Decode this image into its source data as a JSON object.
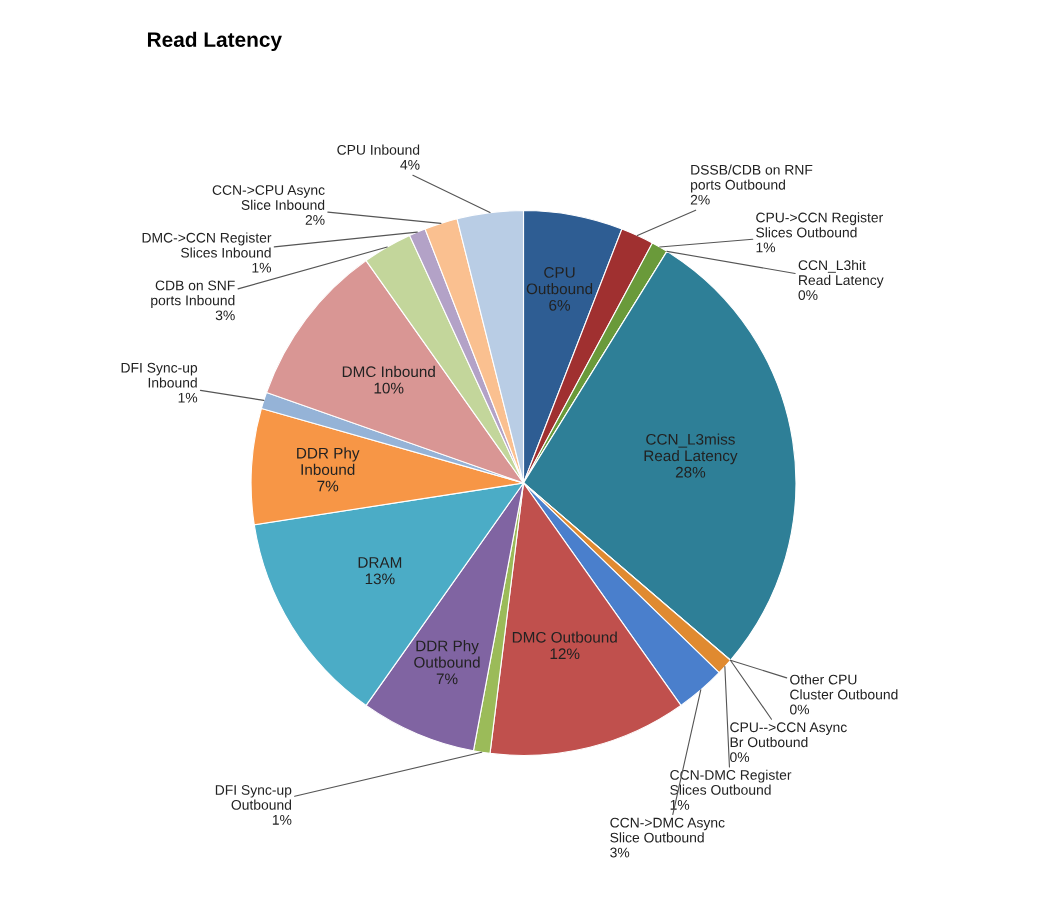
{
  "chart_data": {
    "type": "pie",
    "title": "Read Latency",
    "categories": [
      "CPU Outbound",
      "DSSB/CDB on RNF ports Outbound",
      "CPU->CCN Register Slices Outbound",
      "CCN_L3hit Read Latency",
      "CCN_L3miss Read Latency",
      "Other CPU Cluster Outbound",
      "CPU-->CCN Async Br Outbound",
      "CCN-DMC Register Slices Outbound",
      "CCN->DMC Async Slice Outbound",
      "DMC Outbound",
      "DFI Sync-up Outbound",
      "DDR Phy Outbound",
      "DRAM",
      "DDR Phy Inbound",
      "DFI Sync-up Inbound",
      "DMC Inbound",
      "CDB on SNF ports Inbound",
      "DMC->CCN Register Slices Inbound",
      "CCN->CPU Async Slice Inbound",
      "CPU Inbound"
    ],
    "values": [
      6,
      2,
      1,
      0,
      28,
      0,
      0,
      1,
      3,
      12,
      1,
      7,
      13,
      7,
      1,
      10,
      3,
      1,
      2,
      4
    ],
    "value_labels": [
      "6%",
      "2%",
      "1%",
      "0%",
      "28%",
      "0%",
      "0%",
      "1%",
      "3%",
      "12%",
      "1%",
      "7%",
      "13%",
      "7%",
      "1%",
      "10%",
      "3%",
      "1%",
      "2%",
      "4%"
    ],
    "colors": [
      "#2e5d93",
      "#a03030",
      "#6a9a3a",
      "#7a5ca0",
      "#2e7f97",
      "#e07b22",
      "#3a6fb0",
      "#e08a30",
      "#4a7fcc",
      "#c0504d",
      "#9bbb59",
      "#8064a2",
      "#4bacc6",
      "#f79646",
      "#95b3d7",
      "#d99694",
      "#c3d69b",
      "#b3a2c7",
      "#fac090",
      "#b9cde5"
    ]
  }
}
